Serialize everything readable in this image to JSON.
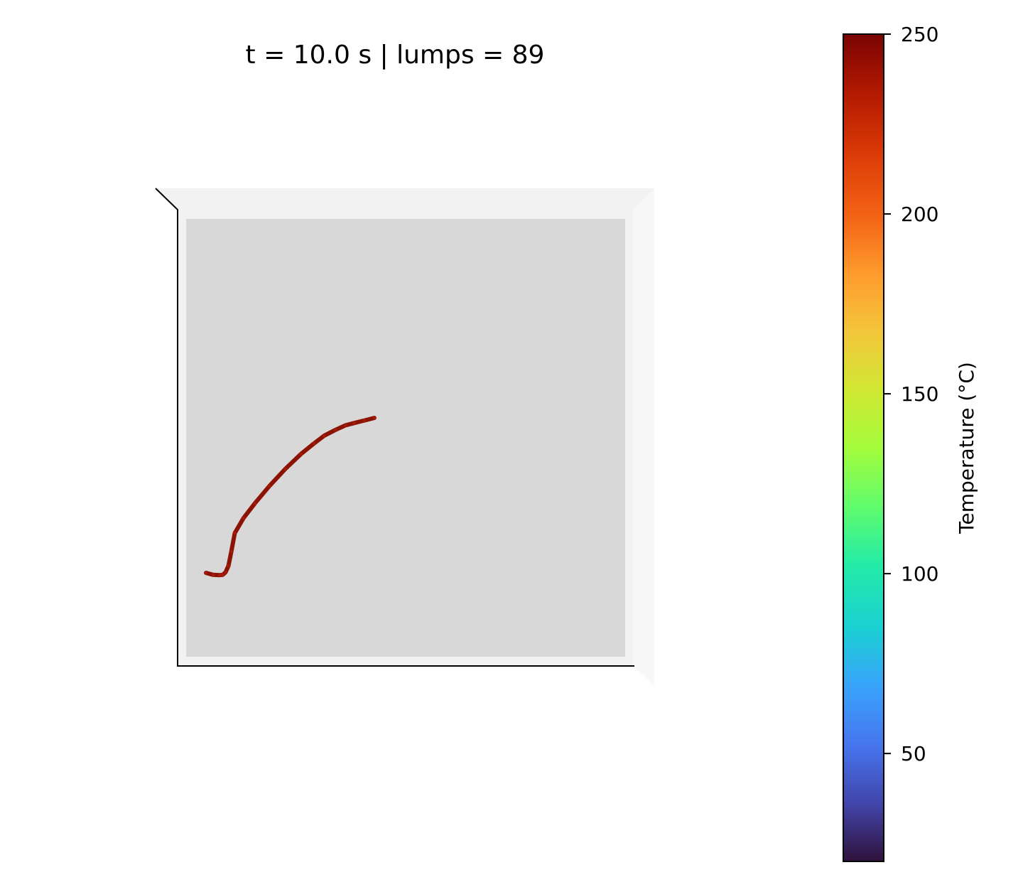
{
  "chart_data": {
    "type": "line",
    "title": "t = 10.0 s  |  lumps = 89",
    "series": [
      {
        "points_count": 89,
        "temperature_c": 245,
        "x": [
          0.0,
          0.25,
          0.48,
          0.58,
          0.68,
          0.78,
          0.88,
          1.0,
          1.3,
          1.7,
          2.2,
          2.75,
          3.3,
          3.75,
          4.1,
          4.5,
          4.85,
          5.15,
          5.5,
          5.85
        ],
        "y": [
          0.0,
          -0.07,
          -0.08,
          -0.07,
          0.02,
          0.25,
          0.75,
          1.4,
          1.92,
          2.45,
          3.05,
          3.65,
          4.18,
          4.55,
          4.82,
          5.03,
          5.19,
          5.27,
          5.36,
          5.45
        ]
      }
    ],
    "colorbar": {
      "label": "Temperature (°C)",
      "min": 20,
      "max": 250,
      "ticks": [
        "50",
        "100",
        "150",
        "200",
        "250"
      ],
      "tick_values": [
        50,
        100,
        150,
        200,
        250
      ],
      "colormap": "turbo"
    },
    "axes": {
      "pane_color": "#d8d8d8",
      "wall_color": "#f2f2f2",
      "grid": false
    },
    "line_color": "#8b1304"
  }
}
